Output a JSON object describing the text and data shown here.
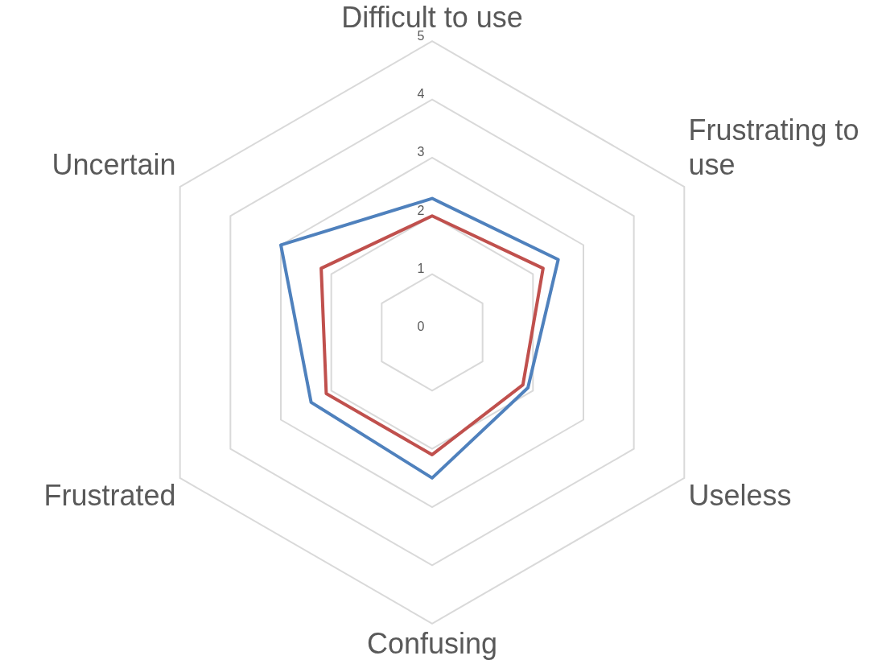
{
  "chart_data": {
    "type": "radar",
    "categories": [
      "Difficult to use",
      "Frustrating to use",
      "Useless",
      "Confusing",
      "Frustrated",
      "Uncertain"
    ],
    "series": [
      {
        "color": "#4f81bd",
        "values": [
          2.3,
          2.5,
          1.9,
          2.5,
          2.4,
          3.0
        ]
      },
      {
        "color": "#c0504d",
        "values": [
          2.0,
          2.2,
          1.8,
          2.1,
          2.1,
          2.2
        ]
      }
    ],
    "ylim": [
      0,
      5
    ],
    "yticks": [
      0,
      1,
      2,
      3,
      4,
      5
    ],
    "grid": true,
    "legend": false,
    "marker": "none",
    "line_style": "solid"
  }
}
